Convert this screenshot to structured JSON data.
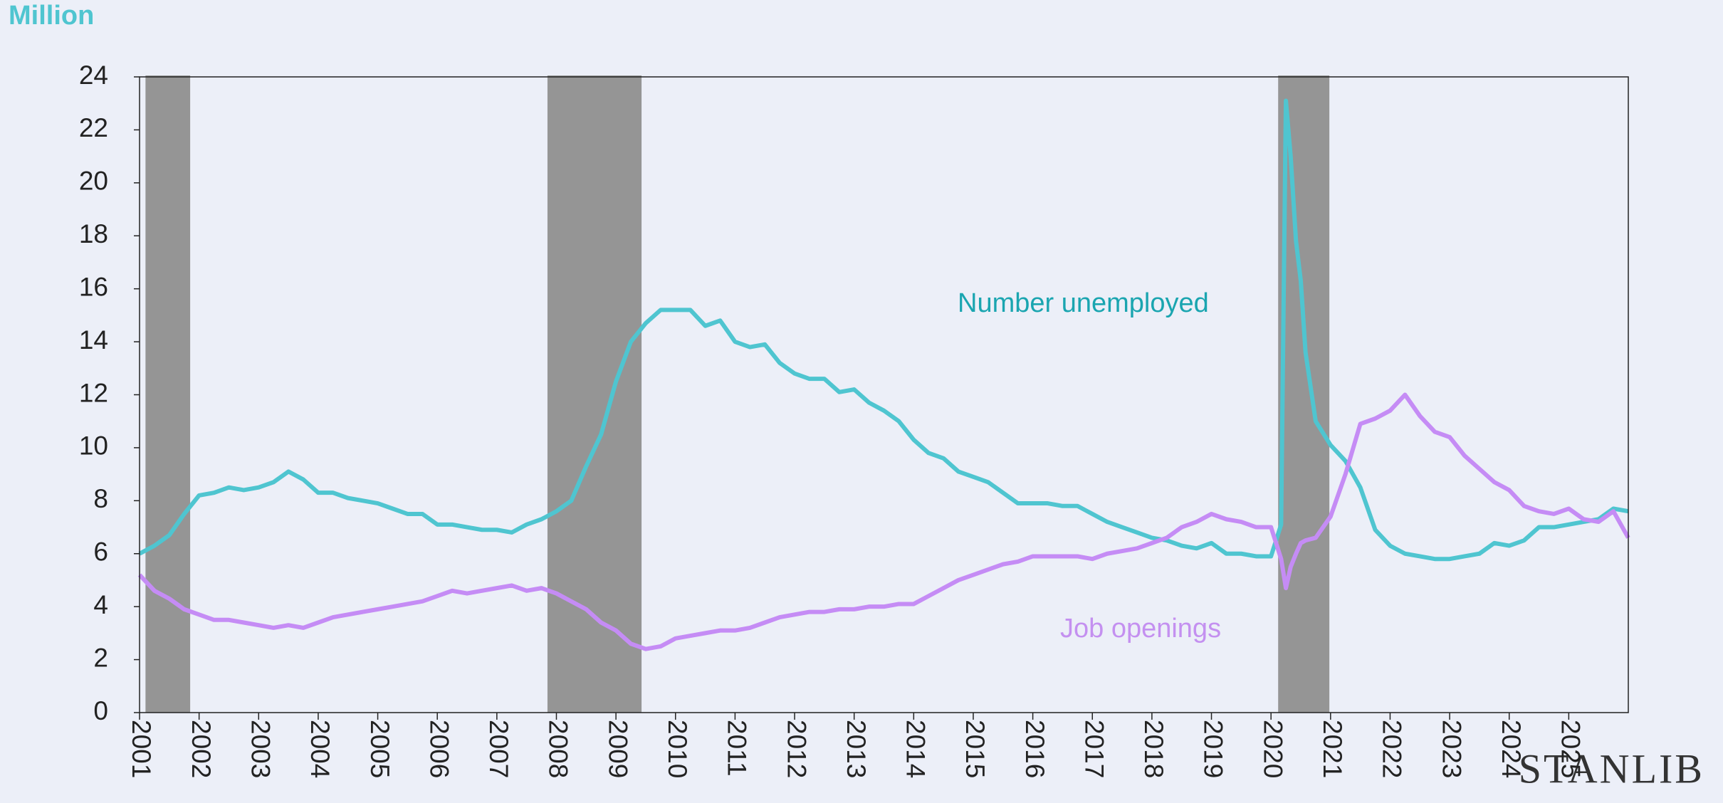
{
  "chart_data": {
    "type": "line",
    "y_axis_label": "Million",
    "logo": "STANLIB",
    "xlim": [
      2001,
      2026
    ],
    "xticks": [
      2001,
      2002,
      2003,
      2004,
      2005,
      2006,
      2007,
      2008,
      2009,
      2010,
      2011,
      2012,
      2013,
      2014,
      2015,
      2016,
      2017,
      2018,
      2019,
      2020,
      2021,
      2022,
      2023,
      2024,
      2025
    ],
    "ylim": [
      0,
      24
    ],
    "yticks": [
      0,
      2,
      4,
      6,
      8,
      10,
      12,
      14,
      16,
      18,
      20,
      22,
      24
    ],
    "recession_color": "#959595",
    "recessions": [
      [
        2001.1,
        2001.85
      ],
      [
        2007.85,
        2009.43
      ],
      [
        2020.12,
        2020.98
      ]
    ],
    "x": [
      2001,
      2001.25,
      2001.5,
      2001.75,
      2002,
      2002.25,
      2002.5,
      2002.75,
      2003,
      2003.25,
      2003.5,
      2003.75,
      2004,
      2004.25,
      2004.5,
      2004.75,
      2005,
      2005.25,
      2005.5,
      2005.75,
      2006,
      2006.25,
      2006.5,
      2006.75,
      2007,
      2007.25,
      2007.5,
      2007.75,
      2008,
      2008.25,
      2008.5,
      2008.75,
      2009,
      2009.25,
      2009.5,
      2009.75,
      2010,
      2010.25,
      2010.5,
      2010.75,
      2011,
      2011.25,
      2011.5,
      2011.75,
      2012,
      2012.25,
      2012.5,
      2012.75,
      2013,
      2013.25,
      2013.5,
      2013.75,
      2014,
      2014.25,
      2014.5,
      2014.75,
      2015,
      2015.25,
      2015.5,
      2015.75,
      2016,
      2016.25,
      2016.5,
      2016.75,
      2017,
      2017.25,
      2017.5,
      2017.75,
      2018,
      2018.25,
      2018.5,
      2018.75,
      2019,
      2019.25,
      2019.5,
      2019.75,
      2020,
      2020.17,
      2020.25,
      2020.33,
      2020.42,
      2020.5,
      2020.58,
      2020.75,
      2021,
      2021.25,
      2021.5,
      2021.75,
      2022,
      2022.25,
      2022.5,
      2022.75,
      2023,
      2023.25,
      2023.5,
      2023.75,
      2024,
      2024.25,
      2024.5,
      2024.75,
      2025,
      2025.25,
      2025.5,
      2025.75,
      2026
    ],
    "series": [
      {
        "name": "Number unemployed",
        "color": "#4fc5d0",
        "label_color": "#1aa5b0",
        "values": [
          6.0,
          6.3,
          6.7,
          7.5,
          8.2,
          8.3,
          8.5,
          8.4,
          8.5,
          8.7,
          9.1,
          8.8,
          8.3,
          8.3,
          8.1,
          8.0,
          7.9,
          7.7,
          7.5,
          7.5,
          7.1,
          7.1,
          7.0,
          6.9,
          6.9,
          6.8,
          7.1,
          7.3,
          7.6,
          8.0,
          9.3,
          10.5,
          12.5,
          14.0,
          14.7,
          15.2,
          15.2,
          15.2,
          14.6,
          14.8,
          14.0,
          13.8,
          13.9,
          13.2,
          12.8,
          12.6,
          12.6,
          12.1,
          12.2,
          11.7,
          11.4,
          11.0,
          10.3,
          9.8,
          9.6,
          9.1,
          8.9,
          8.7,
          8.3,
          7.9,
          7.9,
          7.9,
          7.8,
          7.8,
          7.5,
          7.2,
          7.0,
          6.8,
          6.6,
          6.5,
          6.3,
          6.2,
          6.4,
          6.0,
          6.0,
          5.9,
          5.9,
          7.1,
          23.1,
          21.0,
          17.8,
          16.3,
          13.6,
          11.0,
          10.1,
          9.5,
          8.5,
          6.9,
          6.3,
          6.0,
          5.9,
          5.8,
          5.8,
          5.9,
          6.0,
          6.4,
          6.3,
          6.5,
          7.0,
          7.0,
          7.1,
          7.2,
          7.3,
          7.7,
          7.6
        ]
      },
      {
        "name": "Job openings",
        "color": "#c58cf5",
        "label_color": "#c490f0",
        "values": [
          5.2,
          4.6,
          4.3,
          3.9,
          3.7,
          3.5,
          3.5,
          3.4,
          3.3,
          3.2,
          3.3,
          3.2,
          3.4,
          3.6,
          3.7,
          3.8,
          3.9,
          4.0,
          4.1,
          4.2,
          4.4,
          4.6,
          4.5,
          4.6,
          4.7,
          4.8,
          4.6,
          4.7,
          4.5,
          4.2,
          3.9,
          3.4,
          3.1,
          2.6,
          2.4,
          2.5,
          2.8,
          2.9,
          3.0,
          3.1,
          3.1,
          3.2,
          3.4,
          3.6,
          3.7,
          3.8,
          3.8,
          3.9,
          3.9,
          4.0,
          4.0,
          4.1,
          4.1,
          4.4,
          4.7,
          5.0,
          5.2,
          5.4,
          5.6,
          5.7,
          5.9,
          5.9,
          5.9,
          5.9,
          5.8,
          6.0,
          6.1,
          6.2,
          6.4,
          6.6,
          7.0,
          7.2,
          7.5,
          7.3,
          7.2,
          7.0,
          7.0,
          5.8,
          4.7,
          5.5,
          6.0,
          6.4,
          6.5,
          6.6,
          7.4,
          9.0,
          10.9,
          11.1,
          11.4,
          12.0,
          11.2,
          10.6,
          10.4,
          9.7,
          9.2,
          8.7,
          8.4,
          7.8,
          7.6,
          7.5,
          7.7,
          7.3,
          7.2,
          7.6,
          6.6
        ]
      }
    ]
  }
}
